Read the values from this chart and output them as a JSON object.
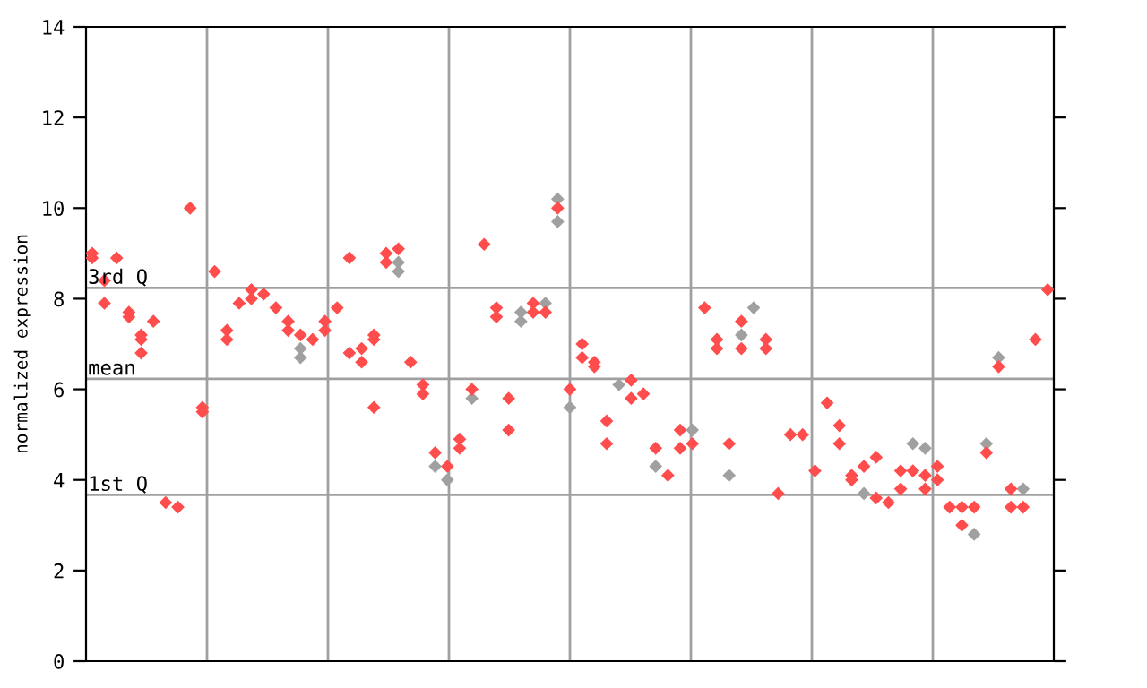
{
  "chart_data": {
    "type": "scatter",
    "ylabel": "normalized expression",
    "marker": "diamond",
    "grid": "x",
    "categories": [
      null,
      null,
      null,
      null,
      null,
      null,
      null,
      null,
      null,
      null,
      null,
      null,
      null,
      null,
      null,
      null,
      null,
      null,
      null,
      null,
      null,
      null,
      null,
      null,
      null,
      null,
      null,
      null,
      null,
      null,
      null,
      null,
      null,
      null,
      null,
      null,
      null,
      null,
      null,
      null,
      null,
      null,
      null,
      null,
      null,
      null,
      null,
      null,
      null,
      null,
      null,
      null,
      null,
      null,
      null,
      null,
      null,
      null,
      null,
      null,
      null,
      null,
      null,
      null,
      null,
      null,
      null,
      null,
      null,
      null,
      null,
      null,
      null,
      null,
      null,
      null,
      null,
      null,
      null
    ],
    "ylim": [
      0,
      14
    ],
    "yticks": [
      0,
      2,
      4,
      6,
      8,
      10,
      12,
      14
    ],
    "ref_lines": [
      {
        "axis": "y",
        "value": 8.24,
        "label": "3rd Q",
        "color": "#a0a0a0"
      },
      {
        "axis": "y",
        "value": 6.23,
        "label": "mean",
        "color": "#a0a0a0"
      },
      {
        "axis": "y",
        "value": 3.67,
        "label": "1st Q",
        "color": "#a0a0a0"
      }
    ],
    "series": [
      {
        "color": "#a0a0a0",
        "values": [
          null,
          null,
          null,
          null,
          null,
          null,
          null,
          null,
          null,
          null,
          null,
          null,
          null,
          null,
          null,
          null,
          null,
          6.9,
          null,
          null,
          null,
          null,
          null,
          null,
          null,
          8.8,
          null,
          null,
          4.3,
          4.0,
          null,
          5.8,
          null,
          null,
          null,
          7.7,
          null,
          7.9,
          10.2,
          5.6,
          null,
          null,
          null,
          6.1,
          null,
          null,
          4.3,
          null,
          null,
          5.1,
          null,
          null,
          4.1,
          7.2,
          7.8,
          null,
          null,
          null,
          null,
          null,
          null,
          null,
          null,
          3.7,
          null,
          null,
          null,
          4.8,
          4.7,
          null,
          null,
          null,
          2.8,
          4.8,
          6.7,
          null,
          3.8,
          null,
          null
        ]
      },
      {
        "color": "#a0a0a0",
        "values": [
          null,
          null,
          null,
          null,
          null,
          null,
          null,
          null,
          null,
          null,
          null,
          null,
          null,
          null,
          null,
          null,
          null,
          6.7,
          null,
          null,
          null,
          null,
          null,
          null,
          null,
          8.6,
          null,
          null,
          null,
          null,
          null,
          null,
          null,
          null,
          null,
          7.5,
          null,
          null,
          9.7,
          null,
          null,
          null,
          null,
          null,
          null,
          null,
          null,
          null,
          null,
          null,
          null,
          null,
          null,
          null,
          null,
          null,
          null,
          null,
          null,
          null,
          null,
          null,
          null,
          null,
          null,
          null,
          null,
          null,
          null,
          null,
          null,
          null,
          null,
          null,
          null,
          null,
          null,
          null,
          null
        ]
      },
      {
        "color": "#ff4c4c",
        "values": [
          9.0,
          8.4,
          8.9,
          7.7,
          7.2,
          7.5,
          3.5,
          3.4,
          10.0,
          5.6,
          8.6,
          7.3,
          7.9,
          8.2,
          8.1,
          7.8,
          7.5,
          7.2,
          7.1,
          7.5,
          7.8,
          8.9,
          6.9,
          7.2,
          9.0,
          9.1,
          6.6,
          6.1,
          4.6,
          4.3,
          4.9,
          6.0,
          9.2,
          7.8,
          5.8,
          null,
          7.9,
          7.7,
          10.0,
          6.0,
          7.0,
          6.6,
          5.3,
          null,
          6.2,
          5.9,
          4.7,
          4.1,
          5.1,
          4.8,
          7.8,
          7.1,
          4.8,
          7.5,
          null,
          7.1,
          3.7,
          5.0,
          5.0,
          4.2,
          5.7,
          5.2,
          4.1,
          4.3,
          4.5,
          3.5,
          4.2,
          4.2,
          4.1,
          4.3,
          3.4,
          3.4,
          3.4,
          4.6,
          6.5,
          3.8,
          3.4,
          7.1,
          8.2
        ]
      },
      {
        "color": "#ff4c4c",
        "values": [
          8.9,
          7.9,
          null,
          7.6,
          7.1,
          null,
          null,
          null,
          null,
          5.5,
          null,
          7.1,
          null,
          8.0,
          null,
          null,
          7.3,
          null,
          null,
          7.3,
          null,
          6.8,
          6.6,
          7.1,
          8.8,
          null,
          null,
          5.9,
          null,
          null,
          4.7,
          null,
          null,
          7.6,
          5.1,
          null,
          7.7,
          null,
          null,
          null,
          6.7,
          6.5,
          4.8,
          null,
          5.8,
          null,
          null,
          null,
          4.7,
          null,
          null,
          6.9,
          null,
          6.9,
          null,
          6.9,
          null,
          null,
          null,
          null,
          null,
          4.8,
          4.0,
          null,
          3.6,
          null,
          3.8,
          null,
          3.8,
          4.0,
          null,
          3.0,
          null,
          null,
          null,
          3.4,
          null,
          null,
          null
        ]
      },
      {
        "color": "#ff4c4c",
        "values": [
          null,
          null,
          null,
          null,
          6.8,
          null,
          null,
          null,
          null,
          null,
          null,
          null,
          null,
          null,
          null,
          null,
          null,
          null,
          null,
          null,
          null,
          null,
          null,
          5.6,
          null,
          null,
          null,
          null,
          null,
          null,
          null,
          null,
          null,
          null,
          null,
          null,
          null,
          null,
          null,
          null,
          null,
          null,
          null,
          null,
          null,
          null,
          null,
          null,
          null,
          null,
          null,
          null,
          null,
          null,
          null,
          null,
          null,
          null,
          null,
          null,
          null,
          null,
          null,
          null,
          null,
          null,
          null,
          null,
          null,
          null,
          null,
          null,
          null,
          null,
          null,
          null,
          null,
          null,
          null
        ]
      }
    ]
  }
}
